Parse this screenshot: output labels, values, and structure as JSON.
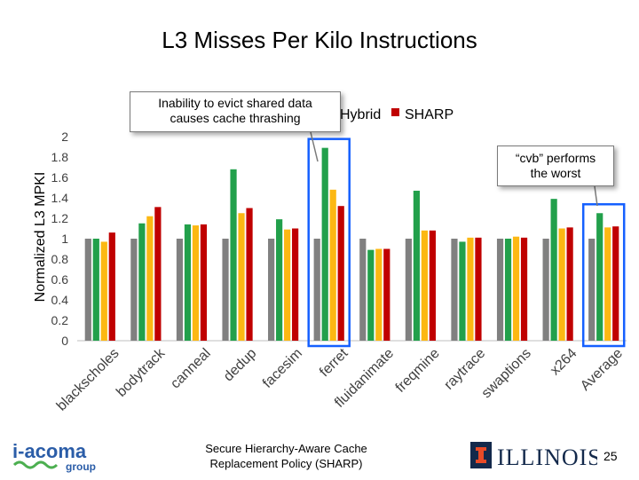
{
  "page_title": "L3 Misses Per Kilo Instructions",
  "chart_data": {
    "type": "bar",
    "title": "L3 Misses Per Kilo Instructions",
    "ylabel": "Normalized L3 MPKI",
    "xlabel": "",
    "ylim": [
      0,
      2
    ],
    "yticks": [
      "0",
      "0.2",
      "0.4",
      "0.6",
      "0.8",
      "1",
      "1.2",
      "1.4",
      "1.6",
      "1.8",
      "2"
    ],
    "categories": [
      "blackscholes",
      "bodytrack",
      "canneal",
      "dedup",
      "facesim",
      "ferret",
      "fluidanimate",
      "freqmine",
      "raytrace",
      "swaptions",
      "x264",
      "Average"
    ],
    "series": [
      {
        "name": "",
        "color": "#808080",
        "values": [
          1.0,
          1.0,
          1.0,
          1.0,
          1.0,
          1.0,
          1.0,
          1.0,
          1.0,
          1.0,
          1.0,
          1.0
        ]
      },
      {
        "name": "",
        "color": "#22a04b",
        "values": [
          1.0,
          1.15,
          1.14,
          1.68,
          1.19,
          1.89,
          0.89,
          1.47,
          0.97,
          1.0,
          1.39,
          1.25
        ]
      },
      {
        "name": "Hybrid",
        "color": "#fcb813",
        "values": [
          0.97,
          1.22,
          1.13,
          1.25,
          1.09,
          1.48,
          0.9,
          1.08,
          1.01,
          1.02,
          1.1,
          1.11
        ]
      },
      {
        "name": "SHARP",
        "color": "#c00000",
        "values": [
          1.06,
          1.31,
          1.14,
          1.3,
          1.1,
          1.32,
          0.9,
          1.08,
          1.01,
          1.01,
          1.11,
          1.12
        ]
      }
    ],
    "legend": {
      "position": "top",
      "visible_entries": [
        "Hybrid",
        "SHARP"
      ],
      "partial_text": "Hybrid"
    },
    "highlight_color": "#1560ff",
    "highlighted_categories": [
      "ferret",
      "Average"
    ],
    "annotations": [
      "Inability to evict shared data causes cache thrashing",
      "“cvb” performs the worst"
    ]
  },
  "callouts": {
    "ferret": {
      "line1": "Inability to evict shared data",
      "line2": "causes cache thrashing"
    },
    "average": {
      "line1": "“cvb” performs",
      "line2": "the worst"
    }
  },
  "footer": {
    "line1": "Secure Hierarchy-Aware Cache",
    "line2": "Replacement Policy (SHARP)",
    "page_number": "25",
    "left_logo": {
      "main": "i-acoma",
      "sub": "group",
      "color": "#2b5da8"
    },
    "right_logo": {
      "word": "ILLINOIS",
      "color": "#13294b",
      "accent": "#e84a27"
    }
  }
}
